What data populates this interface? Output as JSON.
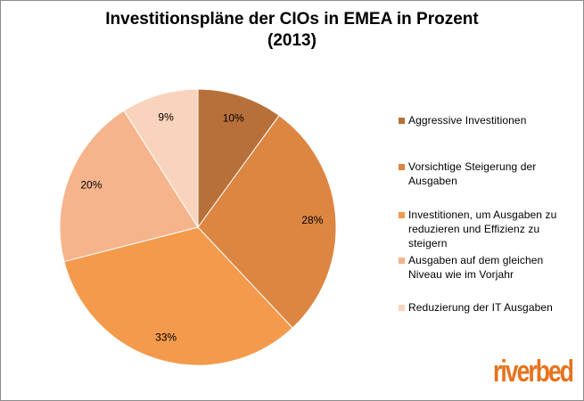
{
  "chart_data": {
    "type": "pie",
    "title": "Investitionspläne der CIOs in EMEA in Prozent",
    "subtitle": "(2013)",
    "start_angle_deg": 0,
    "direction": "clockwise",
    "slices": [
      {
        "label": "Aggressive Investitionen",
        "value": 10,
        "value_label": "10%",
        "color": "#b8703a"
      },
      {
        "label": "Vorsichtige Steigerung der Ausgaben",
        "value": 28,
        "value_label": "28%",
        "color": "#dc8642"
      },
      {
        "label": "Investitionen, um Ausgaben zu reduzieren und Effizienz zu steigern",
        "value": 33,
        "value_label": "33%",
        "color": "#f39a4c"
      },
      {
        "label": "Ausgaben auf dem gleichen Niveau wie im Vorjahr",
        "value": 20,
        "value_label": "20%",
        "color": "#f6b48c"
      },
      {
        "label": "Reduzierung der IT Ausgaben",
        "value": 9,
        "value_label": "9%",
        "color": "#fad3bc"
      }
    ],
    "legend_position": "right"
  },
  "brand": {
    "logo_text": "riverbed",
    "logo_color": "#e6731e"
  }
}
